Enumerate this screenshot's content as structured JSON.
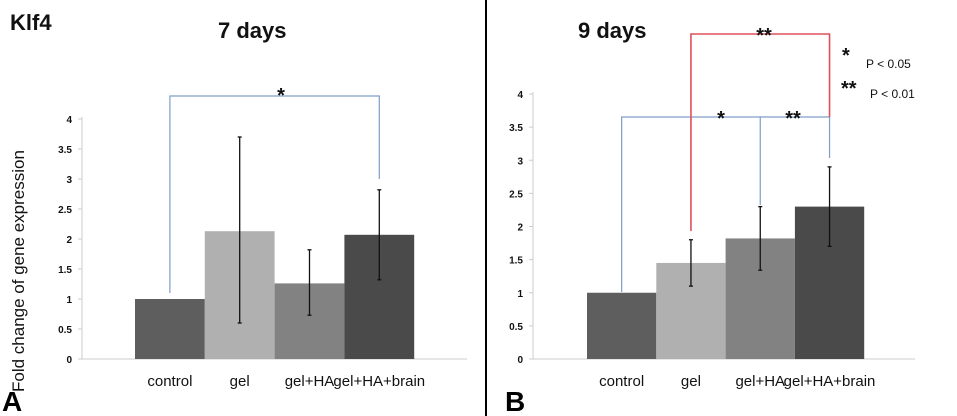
{
  "gene_label": "Klf4",
  "chart_data": [
    {
      "type": "bar",
      "panel": "A",
      "title": "7 days",
      "ylabel": "Fold change of gene expression",
      "xlabel": "",
      "categories": [
        "control",
        "gel",
        "gel+HA",
        "gel+HA+brain"
      ],
      "values": [
        1.0,
        2.13,
        1.26,
        2.07
      ],
      "error_low": [
        null,
        0.6,
        0.73,
        1.32
      ],
      "error_high": [
        null,
        3.7,
        1.82,
        2.82
      ],
      "bar_colors": [
        "#5e5e5e",
        "#b0b0b0",
        "#828282",
        "#4a4a4a"
      ],
      "ylim": [
        0,
        4
      ],
      "yticks": [
        "0",
        "0.5",
        "1",
        "1.5",
        "2",
        "2.5",
        "3",
        "3.5",
        "4"
      ],
      "grid": false,
      "significance": [
        {
          "from": "control",
          "to": "gel+HA+brain",
          "label": "*",
          "color": "#7f9dc9"
        }
      ]
    },
    {
      "type": "bar",
      "panel": "B",
      "title": "9 days",
      "xlabel": "",
      "categories": [
        "control",
        "gel",
        "gel+HA",
        "gel+HA+brain"
      ],
      "values": [
        1.0,
        1.45,
        1.82,
        2.3
      ],
      "error_low": [
        null,
        1.1,
        1.34,
        1.7
      ],
      "error_high": [
        null,
        1.8,
        2.3,
        2.9
      ],
      "bar_colors": [
        "#5e5e5e",
        "#b0b0b0",
        "#828282",
        "#4a4a4a"
      ],
      "ylim": [
        0,
        4
      ],
      "yticks": [
        "0",
        "0.5",
        "1",
        "1.5",
        "2",
        "2.5",
        "3",
        "3.5",
        "4"
      ],
      "grid": false,
      "significance": [
        {
          "from": "control",
          "to": "gel+HA",
          "label": "*",
          "color": "#7f9dc9"
        },
        {
          "from": "control",
          "to": "gel+HA+brain",
          "label": "**",
          "color": "#7f9dc9"
        },
        {
          "from": "gel",
          "to": "gel+HA+brain",
          "label": "**",
          "color": "#e0505a"
        }
      ],
      "legend": [
        {
          "symbol": "*",
          "text": "P < 0.05"
        },
        {
          "symbol": "**",
          "text": "P < 0.01"
        }
      ]
    }
  ]
}
